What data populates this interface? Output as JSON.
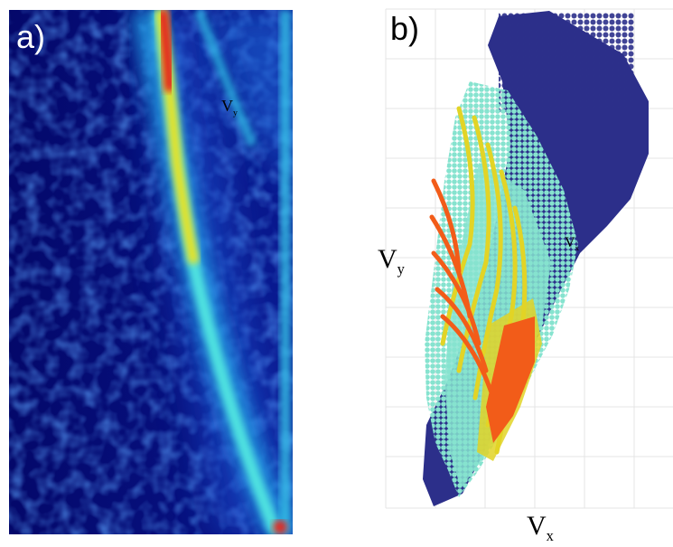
{
  "panels": {
    "a": {
      "letter": "a)",
      "axis_label": {
        "main": "V",
        "sub": "y"
      }
    },
    "b": {
      "letter": "b)",
      "axis_label_y": {
        "main": "V",
        "sub": "y"
      },
      "axis_label_x": {
        "main": "V",
        "sub": "x"
      },
      "inner_label": {
        "main": "V",
        "sub": "x"
      }
    }
  },
  "colors": {
    "background_dark": "#050a6e",
    "mid_blue": "#1e5bd6",
    "cyan": "#3fd0e8",
    "yellow": "#e6e02a",
    "red": "#e3261d",
    "navy_cloud": "#2c2f8a",
    "aqua_cloud": "#86e3cf",
    "yellow_dots": "#e2d426",
    "orange_dots": "#f25c19",
    "grid": "#e2e2e2"
  }
}
